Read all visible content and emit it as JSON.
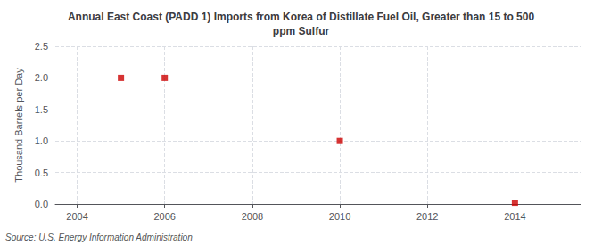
{
  "chart_data": {
    "type": "scatter",
    "title": "Annual East Coast (PADD 1) Imports from Korea of Distillate Fuel Oil, Greater than 15 to 500\nppm Sulfur",
    "ylabel": "Thousand Barrels per Day",
    "annotations": [
      "Source: U.S. Energy Information Administration"
    ],
    "x": [
      2005,
      2006,
      2010,
      2014
    ],
    "values": [
      2.0,
      2.0,
      1.0,
      0.02
    ],
    "color": "#cc0000",
    "marker": "square",
    "xlim": [
      2003.5,
      2015.5
    ],
    "ylim": [
      0.0,
      2.5
    ],
    "xticks": [
      2004,
      2006,
      2008,
      2010,
      2012,
      2014
    ],
    "yticks": [
      {
        "value": 0.0,
        "label": "0.0"
      },
      0.5,
      {
        "value": 1.0,
        "label": "1.0"
      },
      1.5,
      {
        "value": 2.0,
        "label": "2.0"
      },
      2.5
    ],
    "grid": true
  }
}
